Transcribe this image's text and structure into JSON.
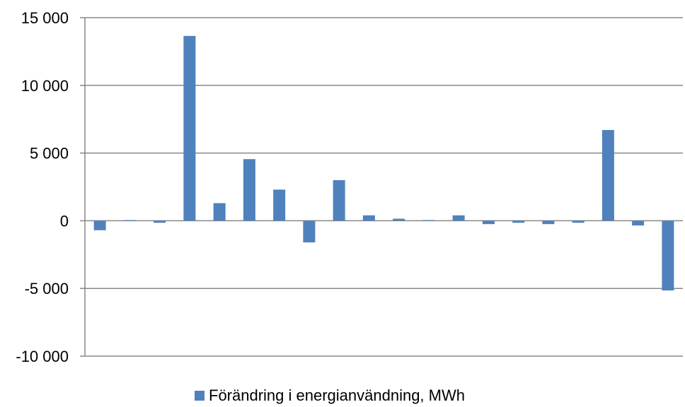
{
  "chart_data": {
    "type": "bar",
    "values": [
      -700,
      50,
      -150,
      13650,
      1300,
      4550,
      2300,
      -1600,
      3000,
      400,
      150,
      50,
      400,
      -250,
      -150,
      -250,
      -150,
      6700,
      -350,
      -5150
    ],
    "series": [
      {
        "name": "Förändring i energianvändning, MWh",
        "color": "#4F81BD"
      }
    ],
    "ylim": [
      -10000,
      15000
    ],
    "yticks": [
      15000,
      10000,
      5000,
      0,
      -5000,
      -10000
    ],
    "ytick_labels": [
      "15 000",
      "10 000",
      "5 000",
      "0",
      "-5 000",
      "-10 000"
    ],
    "grid": true,
    "legend_position": "bottom",
    "xlabel": "",
    "ylabel": ""
  }
}
